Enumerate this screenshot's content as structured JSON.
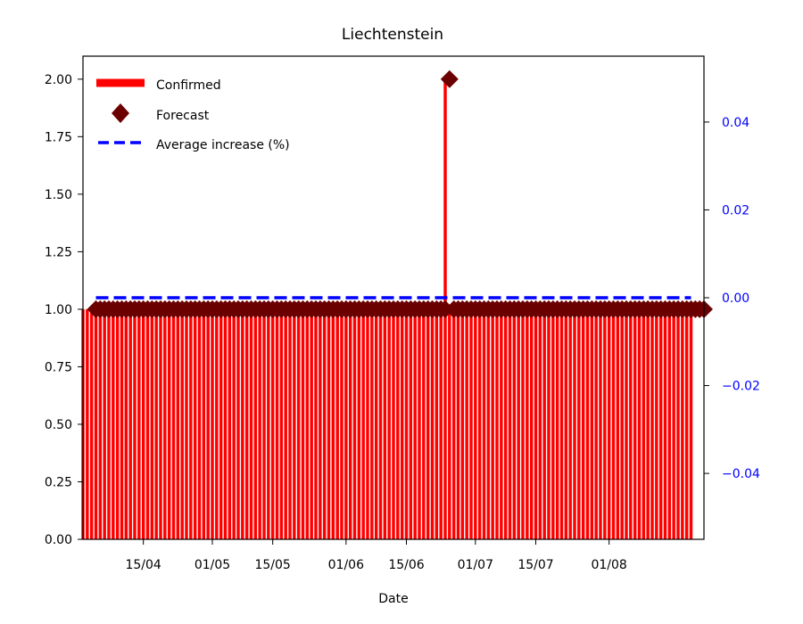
{
  "chart_data": {
    "type": "bar",
    "title": "Liechtenstein",
    "xlabel": "Date",
    "ylabel": "",
    "y2label": "",
    "ylim": [
      0,
      2.1
    ],
    "y2lim": [
      -0.055,
      0.055
    ],
    "x_range": [
      "2020-04-01",
      "2020-08-23"
    ],
    "ticks_x": [
      {
        "date": "2020-04-15",
        "label": "15/04"
      },
      {
        "date": "2020-05-01",
        "label": "01/05"
      },
      {
        "date": "2020-05-15",
        "label": "15/05"
      },
      {
        "date": "2020-06-01",
        "label": "01/06"
      },
      {
        "date": "2020-06-15",
        "label": "15/06"
      },
      {
        "date": "2020-07-01",
        "label": "01/07"
      },
      {
        "date": "2020-07-15",
        "label": "15/07"
      },
      {
        "date": "2020-08-01",
        "label": "01/08"
      }
    ],
    "ticks_y": [
      "0.00",
      "0.25",
      "0.50",
      "0.75",
      "1.00",
      "1.25",
      "1.50",
      "1.75",
      "2.00"
    ],
    "ticks_y2": [
      "−0.04",
      "−0.02",
      "0.00",
      "0.02",
      "0.04"
    ],
    "legend_position": "top-left",
    "grid": false,
    "colors": {
      "confirmed": "#ff0000",
      "forecast": "#6b0000",
      "average": "#0000ff",
      "right_axis": "#0000ff"
    },
    "series": [
      {
        "name": "Confirmed",
        "kind": "bar",
        "axis": "left",
        "start_date": "2020-04-01",
        "end_date": "2020-08-20",
        "default_value": 1,
        "exceptions": [
          {
            "date": "2020-06-24",
            "value": 2
          }
        ]
      },
      {
        "name": "Forecast",
        "kind": "scatter",
        "axis": "left",
        "marker": "diamond",
        "start_date": "2020-04-04",
        "end_date": "2020-08-23",
        "default_value": 1,
        "exceptions": [
          {
            "date": "2020-06-25",
            "value": 2
          }
        ]
      },
      {
        "name": "Average increase (%)",
        "kind": "line",
        "axis": "right",
        "style": "dashed",
        "start_date": "2020-04-04",
        "end_date": "2020-08-20",
        "value": 0.0
      }
    ]
  }
}
